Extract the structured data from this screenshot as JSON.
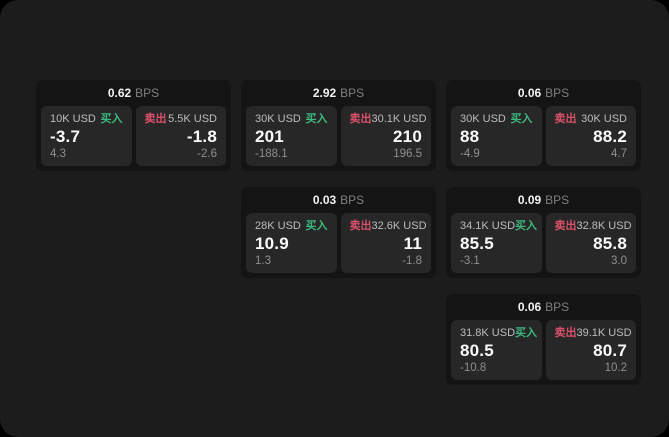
{
  "labels": {
    "bps_unit": "BPS",
    "buy": "买入",
    "sell": "卖出"
  },
  "colors": {
    "background": "#000000",
    "panel": "#1c1c1c",
    "card": "#141414",
    "tile": "#272727",
    "buy": "#3cb87e",
    "sell": "#d9516a",
    "value_text": "#fafafa",
    "muted_text": "#8f8f8f"
  },
  "cards": [
    {
      "row": 1,
      "col": 1,
      "bps": "0.62",
      "buy": {
        "size": "10K USD",
        "price": "-3.7",
        "delta": "4.3"
      },
      "sell": {
        "size": "5.5K USD",
        "price": "-1.8",
        "delta": "-2.6"
      }
    },
    {
      "row": 1,
      "col": 2,
      "bps": "2.92",
      "buy": {
        "size": "30K USD",
        "price": "201",
        "delta": "-188.1"
      },
      "sell": {
        "size": "30.1K USD",
        "price": "210",
        "delta": "196.5"
      }
    },
    {
      "row": 1,
      "col": 3,
      "bps": "0.06",
      "buy": {
        "size": "30K USD",
        "price": "88",
        "delta": "-4.9"
      },
      "sell": {
        "size": "30K USD",
        "price": "88.2",
        "delta": "4.7"
      }
    },
    {
      "row": 2,
      "col": 2,
      "bps": "0.03",
      "buy": {
        "size": "28K USD",
        "price": "10.9",
        "delta": "1.3"
      },
      "sell": {
        "size": "32.6K USD",
        "price": "11",
        "delta": "-1.8"
      }
    },
    {
      "row": 2,
      "col": 3,
      "bps": "0.09",
      "buy": {
        "size": "34.1K USD",
        "price": "85.5",
        "delta": "-3.1"
      },
      "sell": {
        "size": "32.8K USD",
        "price": "85.8",
        "delta": "3.0"
      }
    },
    {
      "row": 3,
      "col": 3,
      "bps": "0.06",
      "buy": {
        "size": "31.8K USD",
        "price": "80.5",
        "delta": "-10.8"
      },
      "sell": {
        "size": "39.1K USD",
        "price": "80.7",
        "delta": "10.2"
      }
    }
  ]
}
